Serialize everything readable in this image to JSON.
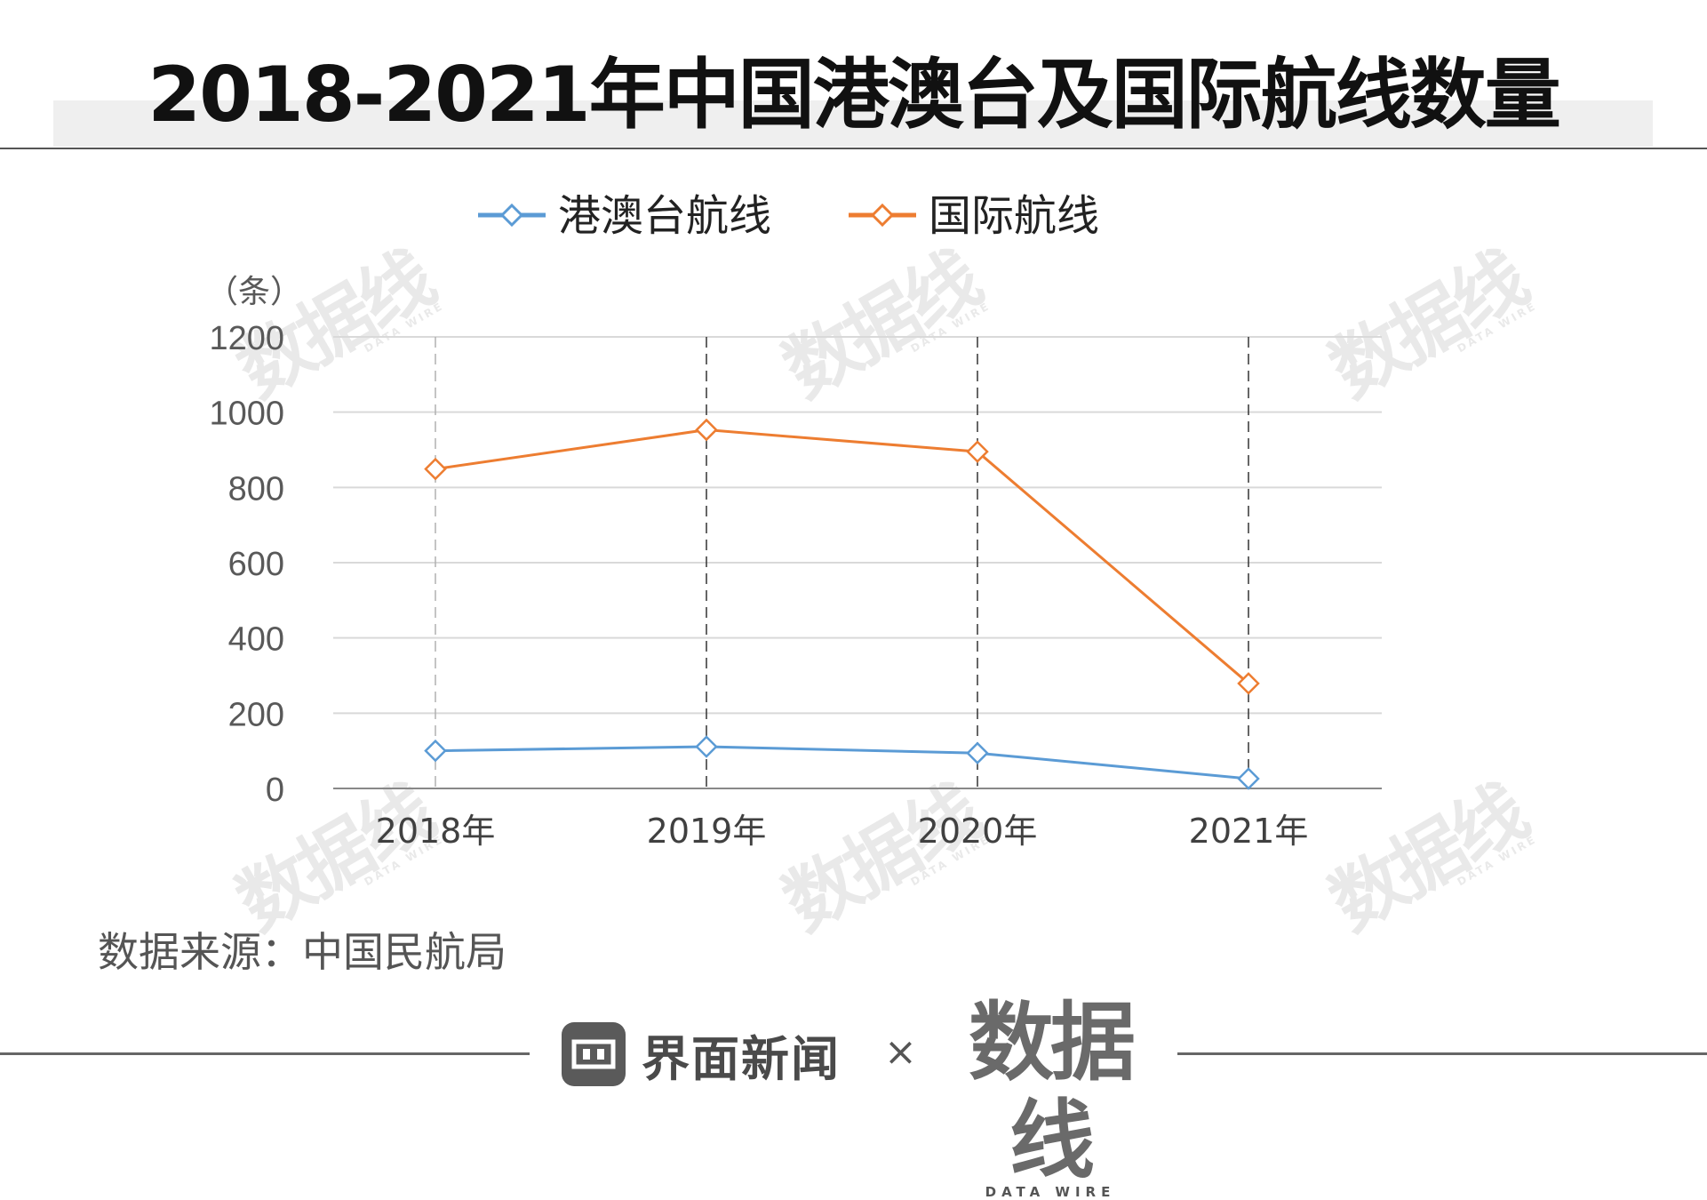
{
  "header": {
    "title": "2018-2021年中国港澳台及国际航线数量"
  },
  "chart_data": {
    "type": "line",
    "title": "2018-2021年中国港澳台及国际航线数量",
    "ylabel": "（条）",
    "xlabel": "",
    "categories": [
      "2018年",
      "2019年",
      "2020年",
      "2021年"
    ],
    "yticks": [
      "0",
      "200",
      "400",
      "600",
      "800",
      "1000",
      "1200"
    ],
    "ylim": [
      0,
      1200
    ],
    "legend_position": "top",
    "series": [
      {
        "name": "港澳台航线",
        "color": "#5b9bd5",
        "values": [
          100,
          111,
          94,
          26
        ]
      },
      {
        "name": "国际航线",
        "color": "#ed7d31",
        "values": [
          849,
          953,
          895,
          279
        ]
      }
    ]
  },
  "source": {
    "text": "数据来源：中国民航局"
  },
  "footer": {
    "brand_name": "界面新闻",
    "separator": "×",
    "logo_main": "数据线",
    "logo_sub": "DATA WIRE"
  }
}
